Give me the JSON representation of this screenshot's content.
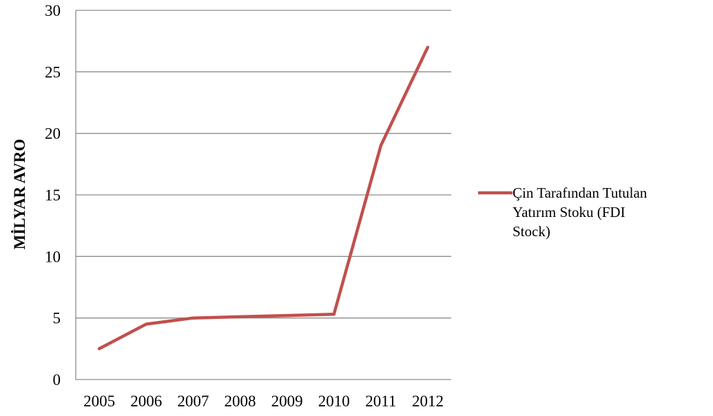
{
  "chart_data": {
    "type": "line",
    "title": "",
    "xlabel": "",
    "ylabel": "MİLYAR AVRO",
    "categories": [
      "2005",
      "2006",
      "2007",
      "2008",
      "2009",
      "2010",
      "2011",
      "2012"
    ],
    "series": [
      {
        "name": "Çin Tarafından Tutulan Yatırım Stoku (FDI Stock)",
        "legend_lines": [
          "Çin Tarafından Tutulan",
          "Yatırım Stoku (FDI",
          "Stock)"
        ],
        "color": "#c0504d",
        "values": [
          2.5,
          4.5,
          5.0,
          5.1,
          5.2,
          5.3,
          19.0,
          27.0
        ]
      }
    ],
    "ylim": [
      0,
      30
    ],
    "yticks": [
      "0",
      "5",
      "10",
      "15",
      "20",
      "25",
      "30"
    ],
    "grid": true,
    "legend": "right"
  }
}
